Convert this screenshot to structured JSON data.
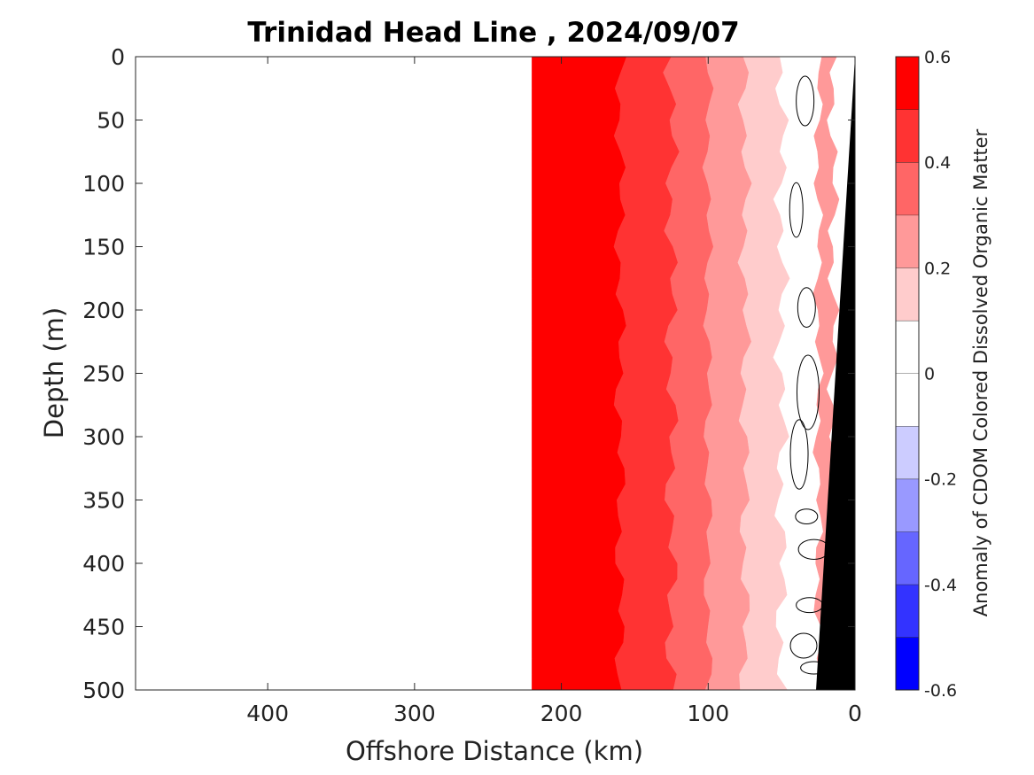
{
  "chart_data": {
    "type": "contour",
    "title": "Trinidad Head Line , 2024/09/07",
    "xlabel": "Offshore Distance (km)",
    "ylabel": "Depth (m)",
    "xlim": [
      490,
      0
    ],
    "ylim": [
      0,
      500
    ],
    "x_reversed": true,
    "y_reversed": true,
    "xticks": [
      "400",
      "300",
      "200",
      "100",
      "0"
    ],
    "xtick_values": [
      400,
      300,
      200,
      100,
      0
    ],
    "yticks": [
      "0",
      "50",
      "100",
      "150",
      "200",
      "250",
      "300",
      "350",
      "400",
      "450",
      "500"
    ],
    "ytick_values": [
      0,
      50,
      100,
      150,
      200,
      250,
      300,
      350,
      400,
      450,
      500
    ],
    "data_extent_km": [
      220,
      0
    ],
    "colorbar": {
      "label": "Anomaly of CDOM Colored Dissolved Organic Matter",
      "ticks": [
        "0.6",
        "0.4",
        "0.2",
        "0",
        "-0.2",
        "-0.4",
        "-0.6"
      ],
      "tick_values": [
        0.6,
        0.4,
        0.2,
        0,
        -0.2,
        -0.4,
        -0.6
      ],
      "range": [
        -0.6,
        0.6
      ],
      "levels": [
        -0.6,
        -0.5,
        -0.4,
        -0.3,
        -0.2,
        -0.1,
        0,
        0.1,
        0.2,
        0.3,
        0.4,
        0.5,
        0.6
      ],
      "colors": [
        "#0000ff",
        "#3333ff",
        "#6666ff",
        "#9999ff",
        "#ccccff",
        "#ffffff",
        "#ffffff",
        "#ffcccc",
        "#ff9999",
        "#ff6666",
        "#ff3333",
        "#ff0000"
      ]
    },
    "bands": [
      {
        "range_km": [
          220,
          160
        ],
        "value": 0.5
      },
      {
        "range_km": [
          160,
          125
        ],
        "value": 0.45
      },
      {
        "range_km": [
          125,
          100
        ],
        "value": 0.35
      },
      {
        "range_km": [
          100,
          75
        ],
        "value": 0.25
      },
      {
        "range_km": [
          75,
          50
        ],
        "value": 0.15
      },
      {
        "range_km": [
          50,
          25
        ],
        "value": 0.0
      },
      {
        "range_km": [
          25,
          15
        ],
        "value": 0.25
      }
    ],
    "bathymetry_color": "#000000",
    "zero_contour_color": "#000000"
  }
}
